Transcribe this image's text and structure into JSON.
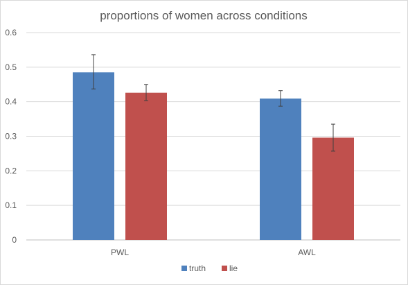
{
  "chart_data": {
    "type": "bar",
    "title": "proportions of women across conditions",
    "xlabel": "",
    "ylabel": "",
    "categories": [
      "PWL",
      "AWL"
    ],
    "ylim": [
      0,
      0.6
    ],
    "yticks": [
      "0",
      "0.1",
      "0.2",
      "0.3",
      "0.4",
      "0.5",
      "0.6"
    ],
    "grid": true,
    "legend_position": "bottom",
    "series": [
      {
        "name": "truth",
        "color": "#4f81bd",
        "values": [
          0.485,
          0.409
        ],
        "error": [
          [
            0.437,
            0.536
          ],
          [
            0.387,
            0.432
          ]
        ]
      },
      {
        "name": "lie",
        "color": "#c0504d",
        "values": [
          0.426,
          0.296
        ],
        "error": [
          [
            0.403,
            0.45
          ],
          [
            0.257,
            0.335
          ]
        ]
      }
    ]
  }
}
